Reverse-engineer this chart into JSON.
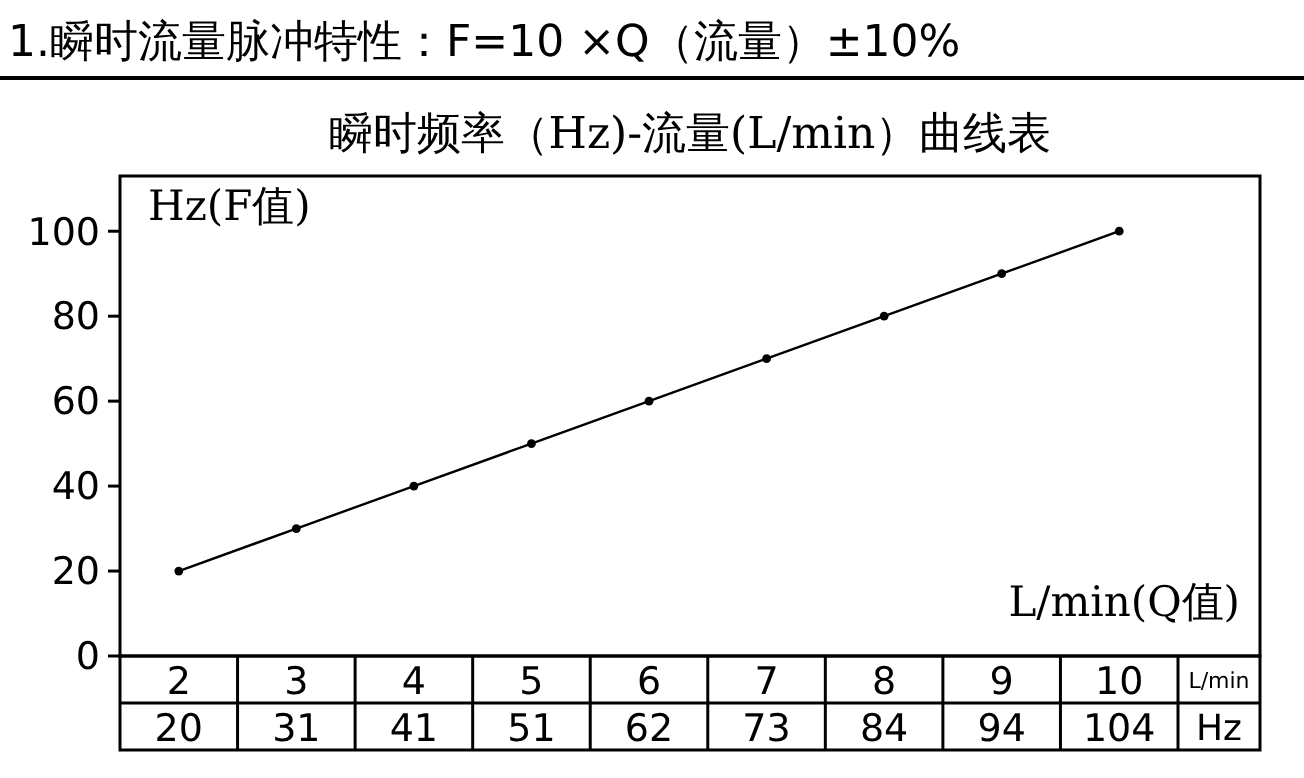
{
  "chart_data": {
    "type": "line",
    "title": "1.瞬时流量脉冲特性：F=10 ×Q（流量）±10%",
    "subtitle": "瞬时频率（Hz)-流量(L/min）曲线表",
    "xlabel": "L/min(Q值)",
    "ylabel": "Hz(F值)",
    "categories": [
      "2",
      "3",
      "4",
      "5",
      "6",
      "7",
      "8",
      "9",
      "10"
    ],
    "series": [
      {
        "color": "#000000",
        "values": [
          20,
          30,
          40,
          50,
          60,
          70,
          80,
          90,
          100
        ]
      }
    ],
    "annotations": [
      "L/min",
      "Hz",
      "20",
      "31",
      "41",
      "51",
      "62",
      "73",
      "84",
      "94",
      "104"
    ],
    "ylim": [
      0,
      113
    ],
    "yticks": [
      0,
      20,
      40,
      60,
      80,
      100
    ],
    "marker": "circle",
    "line_style": "solid",
    "grid": false
  }
}
